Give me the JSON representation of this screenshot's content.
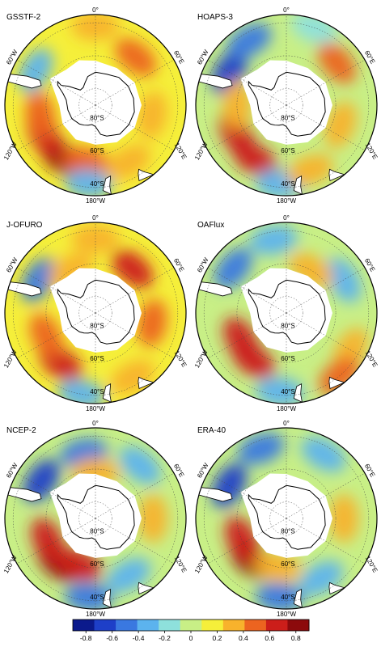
{
  "colorbar": {
    "ticks": [
      "-0.8",
      "-0.6",
      "-0.4",
      "-0.2",
      "0",
      "0.2",
      "0.4",
      "0.6",
      "0.8"
    ],
    "range": [
      -0.9,
      0.9
    ],
    "colors": [
      "#0b1a8c",
      "#1e3fc8",
      "#3a78e0",
      "#5cb3ee",
      "#8ee0dc",
      "#c8ef86",
      "#f5ef3a",
      "#f8b22c",
      "#ec6420",
      "#cc1e1a",
      "#8c0a0c"
    ]
  },
  "panels": [
    {
      "title": "GSSTF-2",
      "labels": {
        "lon_top": "0°",
        "lon_left": "60°W",
        "lon_right": "60°E",
        "lon_lower_left": "120°W",
        "lon_lower_right": "120°E",
        "lon_bottom": "180°W",
        "lat_80": "80°S",
        "lat_60": "60°S",
        "lat_40": "40°S"
      },
      "field": {
        "background": 0.15,
        "patches": [
          {
            "lon": -150,
            "lat": -52,
            "value": 0.75
          },
          {
            "lon": -120,
            "lat": -54,
            "value": 0.7
          },
          {
            "lon": -170,
            "lat": -55,
            "value": 0.55
          },
          {
            "lon": -100,
            "lat": -56,
            "value": 0.5
          },
          {
            "lon": 40,
            "lat": -52,
            "value": 0.45
          },
          {
            "lon": 100,
            "lat": -55,
            "value": 0.4
          },
          {
            "lon": -60,
            "lat": -48,
            "value": -0.35
          },
          {
            "lon": -175,
            "lat": -42,
            "value": -0.3
          },
          {
            "lon": 150,
            "lat": -50,
            "value": 0.3
          },
          {
            "lon": 0,
            "lat": -42,
            "value": 0.25
          }
        ]
      }
    },
    {
      "title": "HOAPS-3",
      "labels": {
        "lon_top": "0°",
        "lon_left": "60°W",
        "lon_right": "60°E",
        "lon_lower_left": "120°W",
        "lon_lower_right": "120°E",
        "lon_bottom": "180°W",
        "lat_80": "80°S",
        "lat_60": "60°S",
        "lat_40": "40°S"
      },
      "field": {
        "background": -0.05,
        "patches": [
          {
            "lon": -150,
            "lat": -52,
            "value": 0.7
          },
          {
            "lon": -120,
            "lat": -55,
            "value": 0.6
          },
          {
            "lon": -60,
            "lat": -50,
            "value": -0.6
          },
          {
            "lon": -30,
            "lat": -45,
            "value": -0.45
          },
          {
            "lon": 50,
            "lat": -50,
            "value": 0.45
          },
          {
            "lon": 110,
            "lat": -55,
            "value": 0.35
          },
          {
            "lon": -175,
            "lat": -42,
            "value": -0.4
          },
          {
            "lon": 160,
            "lat": -48,
            "value": 0.3
          },
          {
            "lon": 20,
            "lat": -40,
            "value": -0.2
          },
          {
            "lon": -90,
            "lat": -60,
            "value": 0.4
          }
        ]
      }
    },
    {
      "title": "J-OFURO",
      "labels": {
        "lon_top": "0°",
        "lon_left": "60°W",
        "lon_right": "60°E",
        "lon_lower_left": "120°W",
        "lon_lower_right": "120°E",
        "lon_bottom": "180°W",
        "lat_80": "80°S",
        "lat_60": "60°S",
        "lat_40": "40°S"
      },
      "field": {
        "background": 0.1,
        "patches": [
          {
            "lon": -145,
            "lat": -53,
            "value": 0.7
          },
          {
            "lon": -115,
            "lat": -57,
            "value": 0.55
          },
          {
            "lon": 40,
            "lat": -55,
            "value": 0.6
          },
          {
            "lon": 100,
            "lat": -55,
            "value": 0.55
          },
          {
            "lon": -60,
            "lat": -50,
            "value": -0.5
          },
          {
            "lon": -170,
            "lat": -40,
            "value": -0.3
          },
          {
            "lon": 150,
            "lat": -45,
            "value": 0.3
          },
          {
            "lon": 0,
            "lat": -45,
            "value": 0.35
          },
          {
            "lon": -30,
            "lat": -60,
            "value": 0.4
          }
        ]
      }
    },
    {
      "title": "OAFlux",
      "labels": {
        "lon_top": "0°",
        "lon_left": "60°W",
        "lon_right": "60°E",
        "lon_lower_left": "120°W",
        "lon_lower_right": "120°E",
        "lon_bottom": "180°W",
        "lat_80": "80°S",
        "lat_60": "60°S",
        "lat_40": "40°S"
      },
      "field": {
        "background": 0.0,
        "patches": [
          {
            "lon": -145,
            "lat": -55,
            "value": 0.7
          },
          {
            "lon": -120,
            "lat": -58,
            "value": 0.6
          },
          {
            "lon": -50,
            "lat": -48,
            "value": -0.55
          },
          {
            "lon": -10,
            "lat": -45,
            "value": -0.4
          },
          {
            "lon": 60,
            "lat": -50,
            "value": -0.25
          },
          {
            "lon": 120,
            "lat": -45,
            "value": 0.3
          },
          {
            "lon": 140,
            "lat": -40,
            "value": 0.55
          },
          {
            "lon": -175,
            "lat": -42,
            "value": -0.3
          },
          {
            "lon": 30,
            "lat": -60,
            "value": 0.3
          }
        ]
      }
    },
    {
      "title": "NCEP-2",
      "labels": {
        "lon_top": "0°",
        "lon_left": "60°W",
        "lon_right": "60°E",
        "lon_lower_left": "120°W",
        "lon_lower_right": "120°E",
        "lon_bottom": "180°W",
        "lat_80": "80°S",
        "lat_60": "60°S",
        "lat_40": "40°S"
      },
      "field": {
        "background": -0.05,
        "patches": [
          {
            "lon": -140,
            "lat": -55,
            "value": 0.8
          },
          {
            "lon": -115,
            "lat": -58,
            "value": 0.7
          },
          {
            "lon": -160,
            "lat": -60,
            "value": 0.6
          },
          {
            "lon": -55,
            "lat": -50,
            "value": -0.6
          },
          {
            "lon": -10,
            "lat": -50,
            "value": -0.45
          },
          {
            "lon": 40,
            "lat": -48,
            "value": -0.35
          },
          {
            "lon": 90,
            "lat": -55,
            "value": 0.25
          },
          {
            "lon": 150,
            "lat": -50,
            "value": -0.3
          },
          {
            "lon": -175,
            "lat": -42,
            "value": -0.55
          },
          {
            "lon": 0,
            "lat": -62,
            "value": 0.3
          }
        ]
      }
    },
    {
      "title": "ERA-40",
      "labels": {
        "lon_top": "0°",
        "lon_left": "60°W",
        "lon_right": "60°E",
        "lon_lower_left": "120°W",
        "lon_lower_right": "120°E",
        "lon_bottom": "180°W",
        "lat_80": "80°S",
        "lat_60": "60°S",
        "lat_40": "40°S"
      },
      "field": {
        "background": 0.0,
        "patches": [
          {
            "lon": -140,
            "lat": -57,
            "value": 0.75
          },
          {
            "lon": -115,
            "lat": -60,
            "value": 0.65
          },
          {
            "lon": -60,
            "lat": -50,
            "value": -0.65
          },
          {
            "lon": -20,
            "lat": -45,
            "value": -0.55
          },
          {
            "lon": 30,
            "lat": -45,
            "value": -0.4
          },
          {
            "lon": 90,
            "lat": -55,
            "value": 0.3
          },
          {
            "lon": 150,
            "lat": -48,
            "value": -0.25
          },
          {
            "lon": -175,
            "lat": -42,
            "value": -0.5
          },
          {
            "lon": -170,
            "lat": -60,
            "value": 0.4
          }
        ]
      }
    }
  ]
}
